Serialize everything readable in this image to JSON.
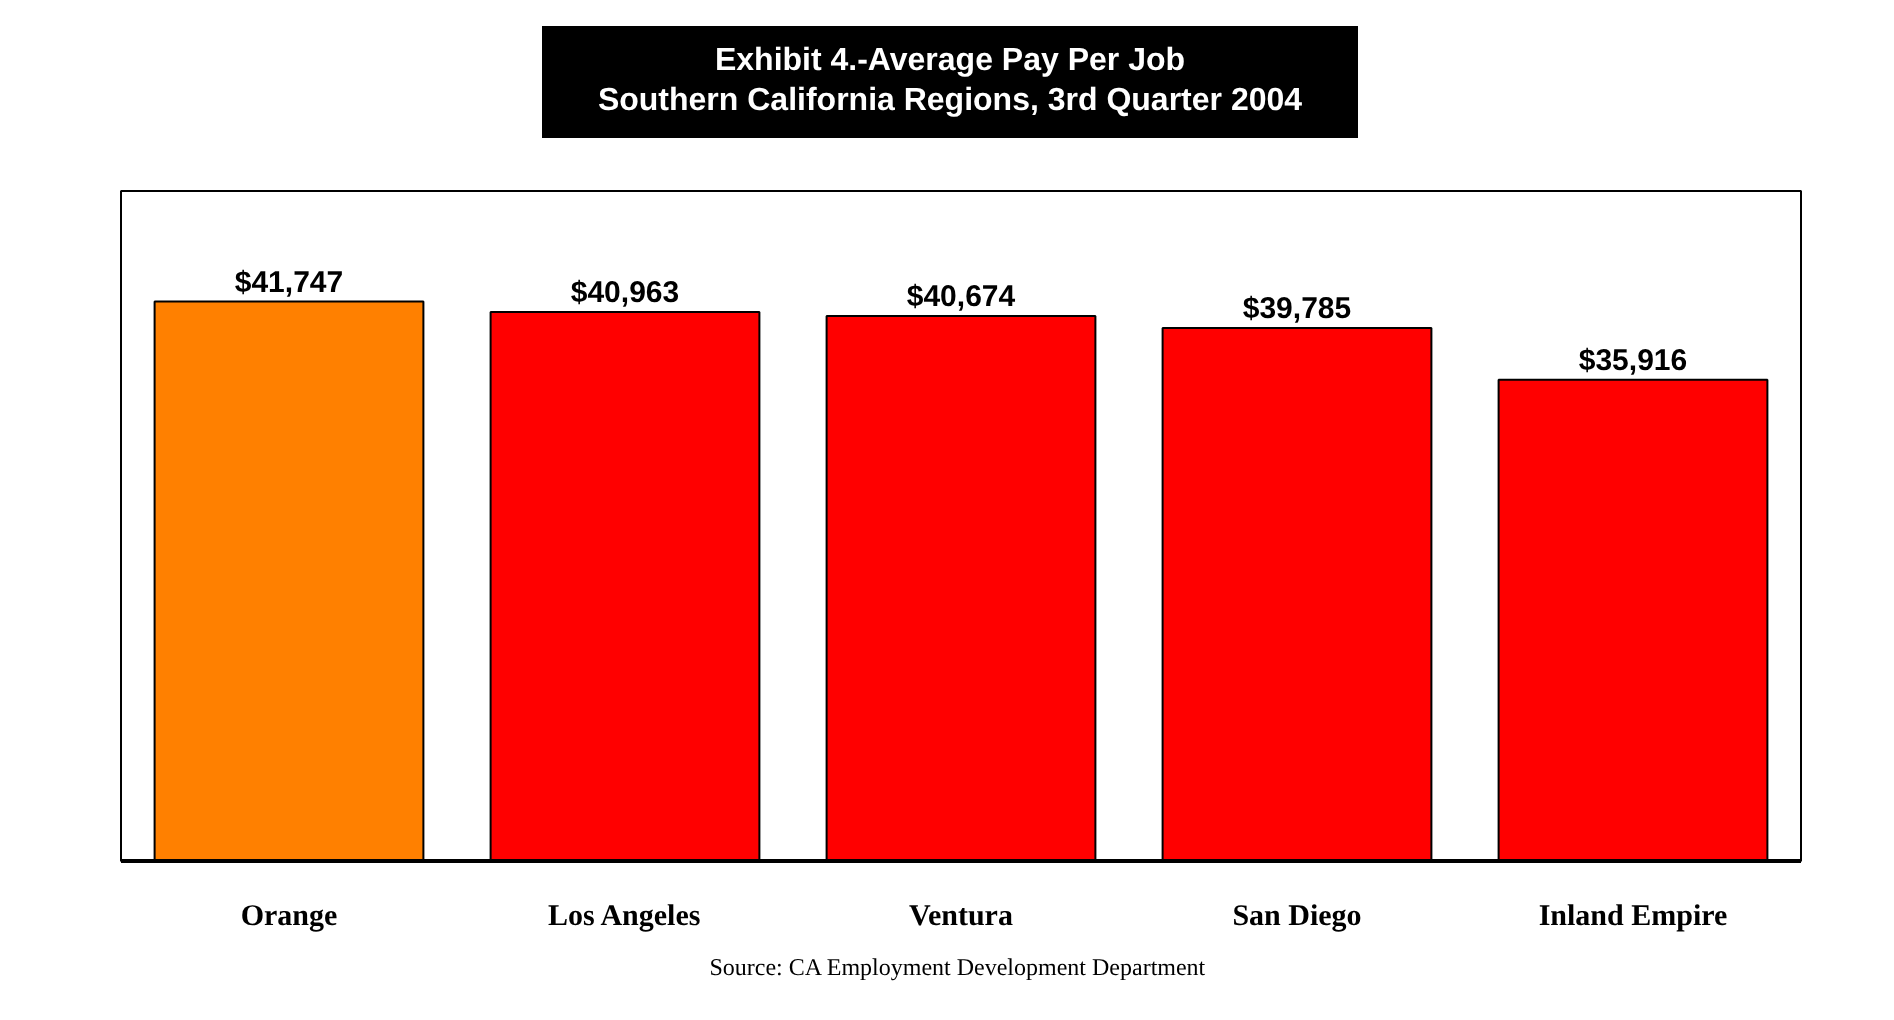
{
  "chart_data": {
    "type": "bar",
    "title": "Exhibit 4.-Average Pay Per Job",
    "subtitle": "Southern California Regions, 3rd Quarter 2004",
    "categories": [
      "Orange",
      "Los Angeles",
      "Ventura",
      "San Diego",
      "Inland Empire"
    ],
    "values": [
      41747,
      40963,
      40674,
      39785,
      35916
    ],
    "colors": [
      "#ff8000",
      "#ff0000",
      "#ff0000",
      "#ff0000",
      "#ff0000"
    ],
    "value_labels": [
      "$41,747",
      "$40,963",
      "$40,674",
      "$39,785",
      "$35,916"
    ],
    "ylim": [
      0,
      50000
    ],
    "tick_labels": "x",
    "grid": false,
    "annotations": [
      "Source:  CA Employment Development Department"
    ]
  }
}
